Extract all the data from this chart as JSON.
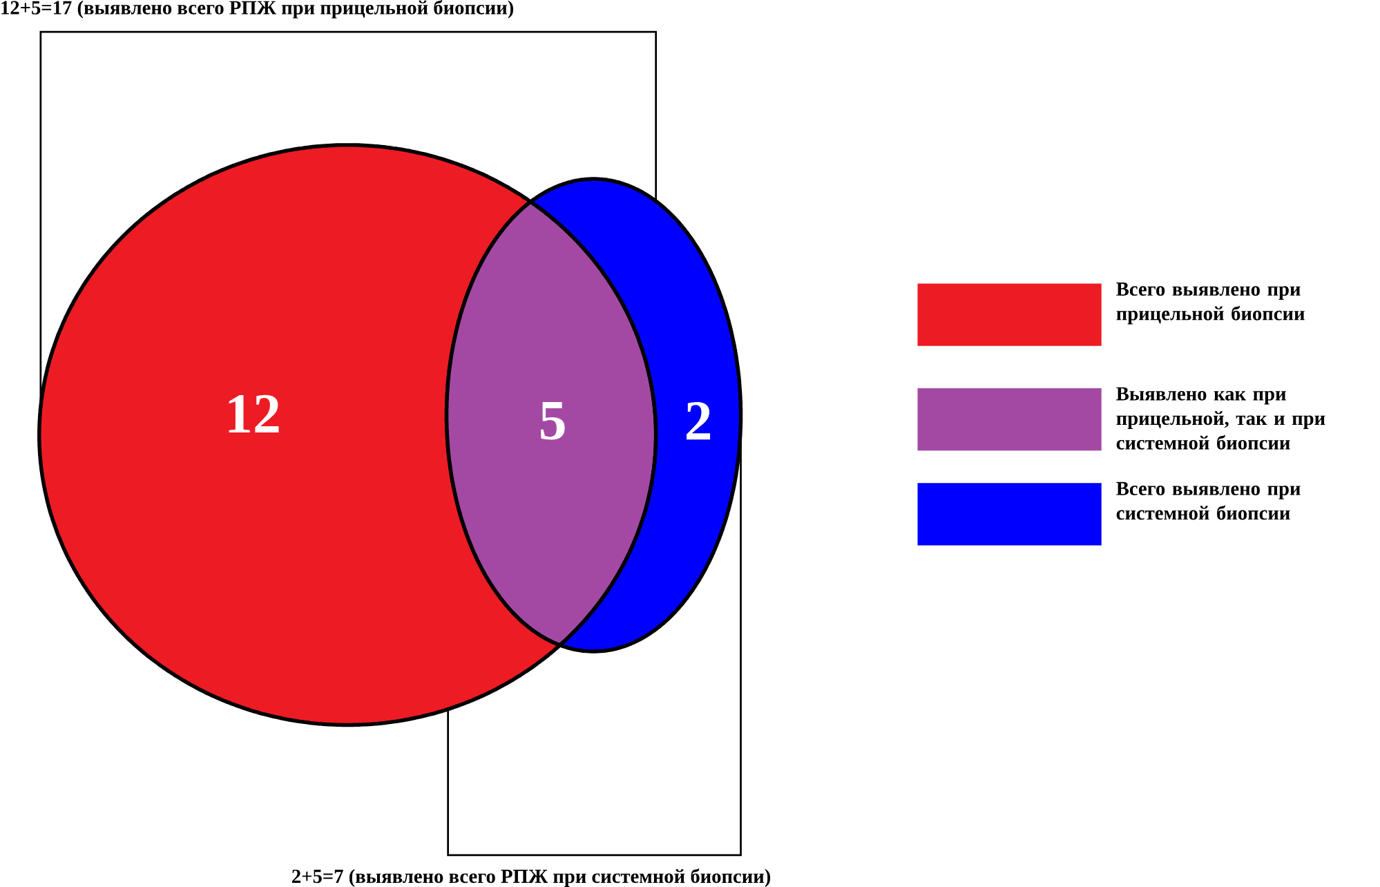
{
  "chart_data": {
    "type": "other",
    "categories": [
      "Всего выявлено при прицельной биопсии",
      "Выявлено как при прицельной, так и при системной биопсии",
      "Всего выявлено при системной биопсии"
    ],
    "values": [
      12,
      5,
      2
    ],
    "colors": [
      "#ed1c24",
      "#a349a4",
      "#0000ff"
    ],
    "data_labels": true,
    "annotations": [
      "12+5=17 (выявлено всего РПЖ при прицельной биопсии)",
      "2+5=7 (выявлено всего РПЖ при системной биопсии)"
    ]
  }
}
